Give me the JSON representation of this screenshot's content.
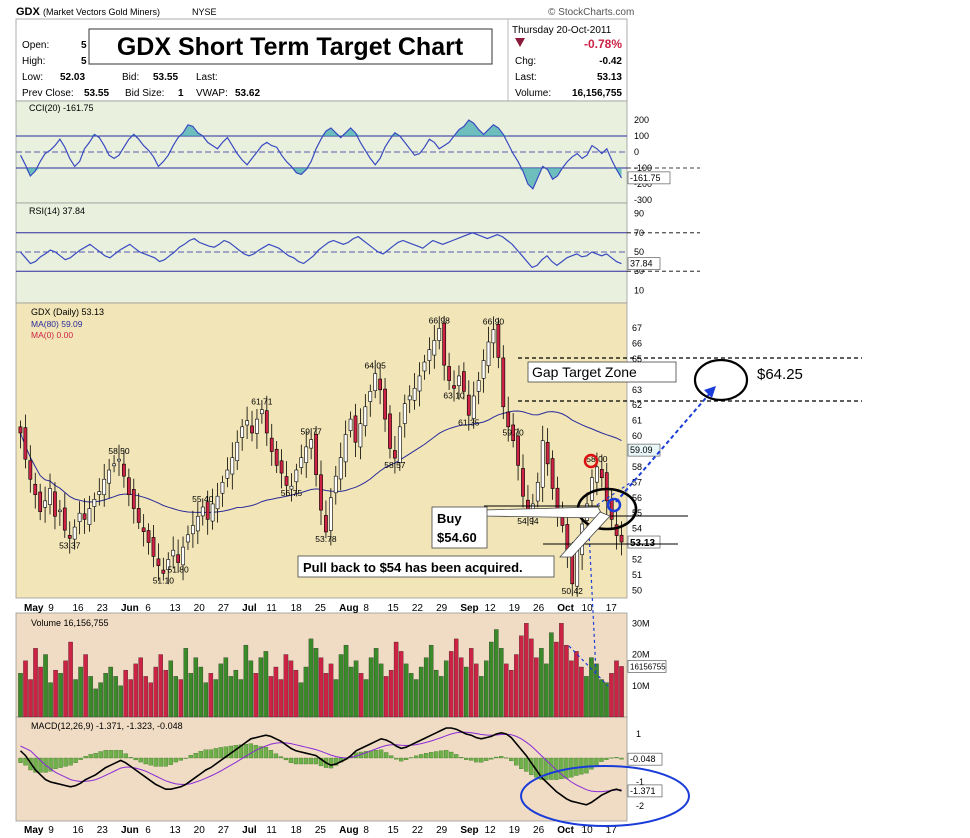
{
  "header": {
    "symbol": "GDX",
    "name": "(Market Vectors Gold Miners)",
    "exchange": "NYSE",
    "copyright": "© StockCharts.com",
    "date": "Thursday  20-Oct-2011",
    "pct_change": "-0.78%",
    "open_label": "Open:",
    "open_value": "5",
    "high_label": "High:",
    "high_value": "5",
    "low_label": "Low:",
    "low_value": "52.03",
    "bid_label": "Bid:",
    "bid_value": "53.55",
    "last_label": "Last:",
    "prev_close_label": "Prev Close:",
    "prev_close_value": "53.55",
    "bid_size_label": "Bid Size:",
    "bid_size_value": "1",
    "vwap_label": "VWAP:",
    "vwap_value": "53.62",
    "chg_label": "Chg:",
    "chg_value": "-0.42",
    "last2_label": "Last:",
    "last2_value": "53.13",
    "volume_label": "Volume:",
    "volume_value": "16,156,755"
  },
  "overlay_title": "GDX Short Term Target Chart",
  "annotations": {
    "gap_zone": "Gap Target Zone",
    "target": "$64.25",
    "buy_line1": "Buy",
    "buy_line2": "$54.60",
    "pullback": "Pull back to $54 has been acquired."
  },
  "colors": {
    "up": "#3a8a2a",
    "down": "#cc2244",
    "price_bg": "#f2e6b8",
    "ind_bg": "#e9f1de",
    "vol_bg": "#f0dcc4",
    "accent_blue": "#1a3cd8",
    "ma_line": "#2a2a9a"
  },
  "chart_data": [
    {
      "type": "line",
      "title": "CCI(20) -161.75",
      "yticks": [
        200,
        100,
        0,
        -100,
        -200,
        -300
      ],
      "ylim": [
        -300,
        250
      ],
      "last_value_label": "-161.75",
      "series": [
        {
          "name": "CCI(20)",
          "values": [
            -20,
            -80,
            -150,
            -120,
            -60,
            -10,
            10,
            40,
            80,
            30,
            -40,
            -90,
            -60,
            20,
            60,
            110,
            90,
            40,
            -20,
            -40,
            -20,
            30,
            80,
            110,
            80,
            40,
            10,
            -30,
            -90,
            -60,
            -20,
            40,
            90,
            120,
            170,
            160,
            120,
            100,
            60,
            40,
            20,
            60,
            90,
            40,
            -10,
            -50,
            -80,
            -40,
            0,
            40,
            60,
            40,
            30,
            -20,
            -60,
            -90,
            -130,
            -140,
            -110,
            -60,
            20,
            80,
            130,
            150,
            120,
            90,
            120,
            150,
            120,
            60,
            10,
            -40,
            -80,
            -40,
            30,
            80,
            120,
            100,
            60,
            20,
            -20,
            -10,
            30,
            80,
            60,
            20,
            40,
            60,
            100,
            140,
            160,
            200,
            180,
            140,
            110,
            140,
            170,
            150,
            110,
            50,
            -10,
            -60,
            -120,
            -200,
            -230,
            -160,
            -90,
            -110,
            -170,
            -150,
            -100,
            -60,
            -30,
            -10,
            -40,
            -20,
            40,
            20,
            -10,
            20,
            -50,
            -110,
            -161.75
          ]
        }
      ]
    },
    {
      "type": "line",
      "title": "RSI(14) 37.84",
      "yticks": [
        90,
        70,
        50,
        30,
        10
      ],
      "ylim": [
        0,
        100
      ],
      "last_value_label": "37.84",
      "series": [
        {
          "name": "RSI(14)",
          "values": [
            50,
            44,
            38,
            40,
            45,
            48,
            52,
            50,
            46,
            42,
            44,
            48,
            52,
            55,
            58,
            54,
            50,
            46,
            44,
            48,
            52,
            55,
            58,
            54,
            50,
            48,
            46,
            44,
            40,
            42,
            46,
            50,
            55,
            58,
            62,
            64,
            60,
            58,
            56,
            55,
            58,
            62,
            60,
            56,
            52,
            48,
            46,
            48,
            52,
            55,
            58,
            56,
            54,
            50,
            46,
            44,
            40,
            38,
            42,
            46,
            52,
            56,
            60,
            62,
            60,
            58,
            60,
            64,
            66,
            62,
            58,
            54,
            50,
            48,
            52,
            56,
            60,
            62,
            60,
            58,
            56,
            54,
            58,
            62,
            60,
            58,
            60,
            62,
            64,
            66,
            68,
            70,
            68,
            66,
            64,
            66,
            68,
            66,
            62,
            58,
            52,
            46,
            40,
            34,
            36,
            42,
            46,
            40,
            36,
            40,
            44,
            46,
            48,
            45,
            46,
            50,
            48,
            46,
            48,
            44,
            40,
            37.84
          ]
        }
      ]
    },
    {
      "type": "candlestick",
      "title": "GDX (Daily) 53.13",
      "legend": [
        "MA(80) 59.09",
        "MA(0) 0.00"
      ],
      "yticks": [
        67,
        66,
        65,
        64,
        63,
        62,
        61,
        60,
        59,
        58,
        57,
        56,
        55,
        54,
        53,
        52,
        51,
        50
      ],
      "ylim": [
        49.5,
        68.5
      ],
      "xlabels": [
        "May",
        "9",
        "16",
        "23",
        "Jun",
        "6",
        "13",
        "20",
        "27",
        "Jul",
        "11",
        "18",
        "25",
        "Aug",
        "8",
        "15",
        "22",
        "29",
        "Sep",
        "12",
        "19",
        "26",
        "Oct",
        "10",
        "17"
      ],
      "price_labels": [
        "53.37",
        "58.50",
        "55.40",
        "51.10",
        "51.80",
        "61.71",
        "59.77",
        "56.75",
        "53.78",
        "64.05",
        "58.57",
        "66.98",
        "63.10",
        "66.90",
        "61.35",
        "59.70",
        "58.00",
        "54.94",
        "50.42"
      ],
      "last_value_label": "53.13",
      "right_value_label": "59.09",
      "closes": [
        60.2,
        58.5,
        57.2,
        56.2,
        55.1,
        55.8,
        56.6,
        54.8,
        55.2,
        53.9,
        53.37,
        54.1,
        55.0,
        54.6,
        55.3,
        55.9,
        56.4,
        57.2,
        57.8,
        58.2,
        58.5,
        57.4,
        56.2,
        55.3,
        54.4,
        53.8,
        53.1,
        52.2,
        51.6,
        51.1,
        52.0,
        52.6,
        51.8,
        52.8,
        53.6,
        54.2,
        54.8,
        55.4,
        54.6,
        55.6,
        56.1,
        57.0,
        57.8,
        58.6,
        59.6,
        60.6,
        61.0,
        60.2,
        61.1,
        61.71,
        60.2,
        59.0,
        58.1,
        57.6,
        56.8,
        56.75,
        57.8,
        58.6,
        59.3,
        59.77,
        57.5,
        55.2,
        53.78,
        56.0,
        57.4,
        58.6,
        60.1,
        61.1,
        59.6,
        60.8,
        61.9,
        62.9,
        64.05,
        63.0,
        61.1,
        59.2,
        58.57,
        60.6,
        62.1,
        62.6,
        63.1,
        63.9,
        64.8,
        65.6,
        66.2,
        66.98,
        64.6,
        63.6,
        63.1,
        63.9,
        62.9,
        61.35,
        62.6,
        63.6,
        64.9,
        66.1,
        66.9,
        65.1,
        61.9,
        60.6,
        59.7,
        58.1,
        56.1,
        54.94,
        55.6,
        57.0,
        59.7,
        58.2,
        56.6,
        55.1,
        54.2,
        52.4,
        50.42,
        52.6,
        54.3,
        55.6,
        57.3,
        58.0,
        57.3,
        55.8,
        54.6,
        53.55,
        53.13
      ]
    },
    {
      "type": "bar",
      "title": "Volume 16,156,755",
      "yticks": [
        "30M",
        "20M",
        "10M"
      ],
      "ylim": [
        0,
        32000000
      ],
      "last_value_label": "16156755",
      "values": [
        14,
        18,
        12,
        22,
        16,
        20,
        11,
        15,
        14,
        18,
        24,
        12,
        16,
        20,
        13,
        9,
        11,
        14,
        16,
        13,
        10,
        15,
        12,
        17,
        19,
        13,
        11,
        16,
        20,
        15,
        18,
        13,
        12,
        22,
        14,
        19,
        16,
        11,
        14,
        12,
        17,
        19,
        13,
        15,
        12,
        23,
        18,
        14,
        19,
        21,
        13,
        16,
        12,
        20,
        18,
        15,
        11,
        16,
        25,
        22,
        19,
        14,
        17,
        12,
        20,
        23,
        16,
        18,
        14,
        12,
        19,
        22,
        17,
        13,
        15,
        24,
        21,
        17,
        14,
        12,
        16,
        19,
        23,
        15,
        13,
        18,
        21,
        25,
        19,
        16,
        22,
        17,
        13,
        18,
        24,
        28,
        22,
        17,
        15,
        20,
        26,
        30,
        25,
        19,
        22,
        17,
        27,
        24,
        30,
        23,
        18,
        21,
        16,
        13,
        19,
        17,
        12,
        11,
        14,
        18,
        16.2
      ]
    },
    {
      "type": "line",
      "title": "MACD(12,26,9) -1.371, -1.323, -0.048",
      "yticks": [
        1,
        0,
        -1,
        -2
      ],
      "ylim": [
        -2.5,
        1.5
      ],
      "last_value_labels": [
        "-0.048",
        "-1.371"
      ],
      "series": [
        {
          "name": "MACD(12,26,9)",
          "values": [
            0.3,
            0.1,
            -0.2,
            -0.5,
            -0.7,
            -0.9,
            -1.0,
            -1.05,
            -1.1,
            -1.15,
            -1.2,
            -1.15,
            -1.05,
            -0.9,
            -0.8,
            -0.7,
            -0.55,
            -0.4,
            -0.3,
            -0.2,
            -0.1,
            -0.2,
            -0.35,
            -0.5,
            -0.65,
            -0.8,
            -0.95,
            -1.1,
            -1.2,
            -1.3,
            -1.3,
            -1.25,
            -1.2,
            -1.1,
            -0.95,
            -0.8,
            -0.65,
            -0.5,
            -0.4,
            -0.25,
            -0.1,
            0.05,
            0.2,
            0.35,
            0.5,
            0.65,
            0.8,
            0.85,
            0.9,
            0.95,
            0.9,
            0.8,
            0.7,
            0.55,
            0.4,
            0.3,
            0.25,
            0.2,
            0.15,
            0.1,
            -0.05,
            -0.2,
            -0.3,
            -0.25,
            -0.15,
            -0.05,
            0.1,
            0.3,
            0.4,
            0.5,
            0.6,
            0.7,
            0.8,
            0.75,
            0.65,
            0.5,
            0.4,
            0.45,
            0.55,
            0.65,
            0.75,
            0.85,
            0.95,
            1.05,
            1.15,
            1.25,
            1.25,
            1.2,
            1.1,
            1.0,
            0.95,
            0.85,
            0.8,
            0.85,
            0.9,
            1.0,
            1.05,
            1.0,
            0.85,
            0.6,
            0.35,
            0.1,
            -0.2,
            -0.5,
            -0.8,
            -1.0,
            -1.2,
            -1.4,
            -1.55,
            -1.7,
            -1.8,
            -1.85,
            -1.9,
            -1.95,
            -1.85,
            -1.7,
            -1.55,
            -1.45,
            -1.35,
            -1.3,
            -1.371
          ]
        },
        {
          "name": "Signal",
          "values": [
            0.5,
            0.4,
            0.3,
            0.1,
            -0.1,
            -0.3,
            -0.45,
            -0.6,
            -0.7,
            -0.8,
            -0.9,
            -0.95,
            -0.98,
            -0.97,
            -0.95,
            -0.9,
            -0.82,
            -0.72,
            -0.62,
            -0.52,
            -0.42,
            -0.38,
            -0.38,
            -0.42,
            -0.48,
            -0.55,
            -0.65,
            -0.75,
            -0.85,
            -0.95,
            -1.02,
            -1.08,
            -1.1,
            -1.1,
            -1.07,
            -1.0,
            -0.93,
            -0.84,
            -0.75,
            -0.65,
            -0.54,
            -0.42,
            -0.3,
            -0.18,
            -0.05,
            0.08,
            0.2,
            0.32,
            0.42,
            0.5,
            0.58,
            0.62,
            0.64,
            0.63,
            0.6,
            0.55,
            0.5,
            0.45,
            0.4,
            0.35,
            0.28,
            0.2,
            0.12,
            0.06,
            0.02,
            0.0,
            0.02,
            0.08,
            0.15,
            0.22,
            0.3,
            0.38,
            0.46,
            0.52,
            0.55,
            0.55,
            0.53,
            0.52,
            0.53,
            0.56,
            0.6,
            0.65,
            0.71,
            0.78,
            0.85,
            0.93,
            1.0,
            1.05,
            1.07,
            1.07,
            1.05,
            1.02,
            0.98,
            0.96,
            0.95,
            0.96,
            0.98,
            0.99,
            0.97,
            0.9,
            0.8,
            0.66,
            0.5,
            0.3,
            0.1,
            -0.1,
            -0.3,
            -0.5,
            -0.68,
            -0.85,
            -1.0,
            -1.12,
            -1.22,
            -1.32,
            -1.38,
            -1.4,
            -1.4,
            -1.38,
            -1.36,
            -1.33,
            -1.323
          ]
        },
        {
          "name": "Histogram",
          "values": [
            -0.2,
            -0.3,
            -0.5,
            -0.6,
            -0.6,
            -0.6,
            -0.55,
            -0.45,
            -0.4,
            -0.35,
            -0.3,
            -0.2,
            -0.07,
            0.07,
            0.15,
            0.2,
            0.27,
            0.32,
            0.32,
            0.32,
            0.32,
            0.18,
            0.03,
            -0.08,
            -0.17,
            -0.25,
            -0.3,
            -0.35,
            -0.35,
            -0.35,
            -0.28,
            -0.17,
            -0.1,
            0.0,
            0.12,
            0.2,
            0.28,
            0.34,
            0.35,
            0.4,
            0.44,
            0.47,
            0.5,
            0.53,
            0.55,
            0.57,
            0.6,
            0.53,
            0.48,
            0.45,
            0.32,
            0.18,
            0.06,
            -0.08,
            -0.2,
            -0.25,
            -0.25,
            -0.25,
            -0.25,
            -0.25,
            -0.33,
            -0.4,
            -0.42,
            -0.31,
            -0.17,
            -0.05,
            0.08,
            0.22,
            0.25,
            0.28,
            0.3,
            0.32,
            0.34,
            0.23,
            0.1,
            -0.05,
            -0.13,
            -0.07,
            0.02,
            0.09,
            0.15,
            0.2,
            0.24,
            0.27,
            0.3,
            0.32,
            0.25,
            0.15,
            0.03,
            -0.07,
            -0.1,
            -0.17,
            -0.18,
            -0.11,
            -0.05,
            0.04,
            0.07,
            0.01,
            -0.12,
            -0.3,
            -0.45,
            -0.56,
            -0.7,
            -0.8,
            -0.9,
            -0.9,
            -0.9,
            -0.9,
            -0.87,
            -0.85,
            -0.8,
            -0.73,
            -0.68,
            -0.63,
            -0.47,
            -0.3,
            -0.15,
            -0.07,
            0.01,
            0.03,
            -0.048
          ]
        }
      ],
      "xlabels": [
        "May",
        "9",
        "16",
        "23",
        "Jun",
        "6",
        "13",
        "20",
        "27",
        "Jul",
        "11",
        "18",
        "25",
        "Aug",
        "8",
        "15",
        "22",
        "29",
        "Sep",
        "12",
        "19",
        "26",
        "Oct",
        "10",
        "17"
      ]
    }
  ]
}
